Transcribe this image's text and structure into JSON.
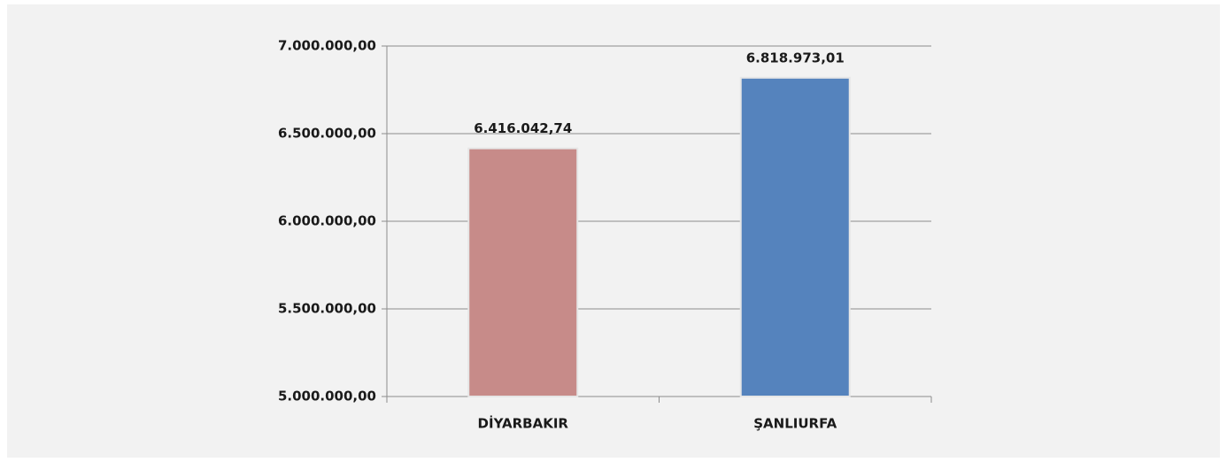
{
  "chart_data": {
    "type": "bar",
    "categories": [
      "DİYARBAKIR",
      "ŞANLIURFA"
    ],
    "values": [
      6416042.74,
      6818973.01
    ],
    "value_labels": [
      "6.416.042,74",
      "6.818.973,01"
    ],
    "colors": [
      "#c78b89",
      "#5583bd"
    ],
    "ylim": [
      5000000,
      7000000
    ],
    "yticks": [
      {
        "value": 5000000,
        "label": "5.000.000,00"
      },
      {
        "value": 5500000,
        "label": "5.500.000,00"
      },
      {
        "value": 6000000,
        "label": "6.000.000,00"
      },
      {
        "value": 6500000,
        "label": "6.500.000,00"
      },
      {
        "value": 7000000,
        "label": "7.000.000,00"
      }
    ],
    "grid": true
  }
}
